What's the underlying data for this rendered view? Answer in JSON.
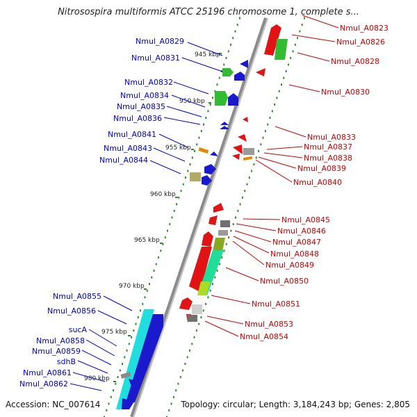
{
  "header": {
    "title": "Nitrosospira multiformis ATCC 25196 chromosome 1, complete s..."
  },
  "footer": {
    "accession": "Accession: NC_007614",
    "topology": "Topology: circular; Length: 3,184,243 bp; Genes: 2,805"
  },
  "colors": {
    "left_label": "#0000cc",
    "right_label": "#cc0000",
    "backbone": "#8c8c8c",
    "tick": "#2e8b2e",
    "gene_blue": "#1a1acc",
    "gene_red": "#e01414",
    "gene_green": "#33bb33",
    "gene_cyan": "#22dddd",
    "gene_gray": "#9a9a9a",
    "gene_olive": "#b2aa66",
    "gene_orange": "#e08a00",
    "gene_lime": "#aadd22"
  },
  "kbp_labels": [
    "945 kbp",
    "950 kbp",
    "955 kbp",
    "960 kbp",
    "965 kbp",
    "970 kbp",
    "975 kbp",
    "980 kbp"
  ],
  "left_labels": [
    "Nmul_A0829",
    "Nmul_A0831",
    "Nmul_A0832",
    "Nmul_A0834",
    "Nmul_A0835",
    "Nmul_A0836",
    "Nmul_A0841",
    "Nmul_A0843",
    "Nmul_A0844",
    "Nmul_A0855",
    "Nmul_A0856",
    "sucA",
    "Nmul_A0858",
    "Nmul_A0859",
    "sdhB",
    "Nmul_A0861",
    "Nmul_A0862"
  ],
  "right_labels": [
    "Nmul_A0823",
    "Nmul_A0826",
    "Nmul_A0828",
    "Nmul_A0830",
    "Nmul_A0833",
    "Nmul_A0837",
    "Nmul_A0838",
    "Nmul_A0839",
    "Nmul_A0840",
    "Nmul_A0845",
    "Nmul_A0846",
    "Nmul_A0847",
    "Nmul_A0848",
    "Nmul_A0849",
    "Nmul_A0850",
    "Nmul_A0851",
    "Nmul_A0853",
    "Nmul_A0854"
  ]
}
